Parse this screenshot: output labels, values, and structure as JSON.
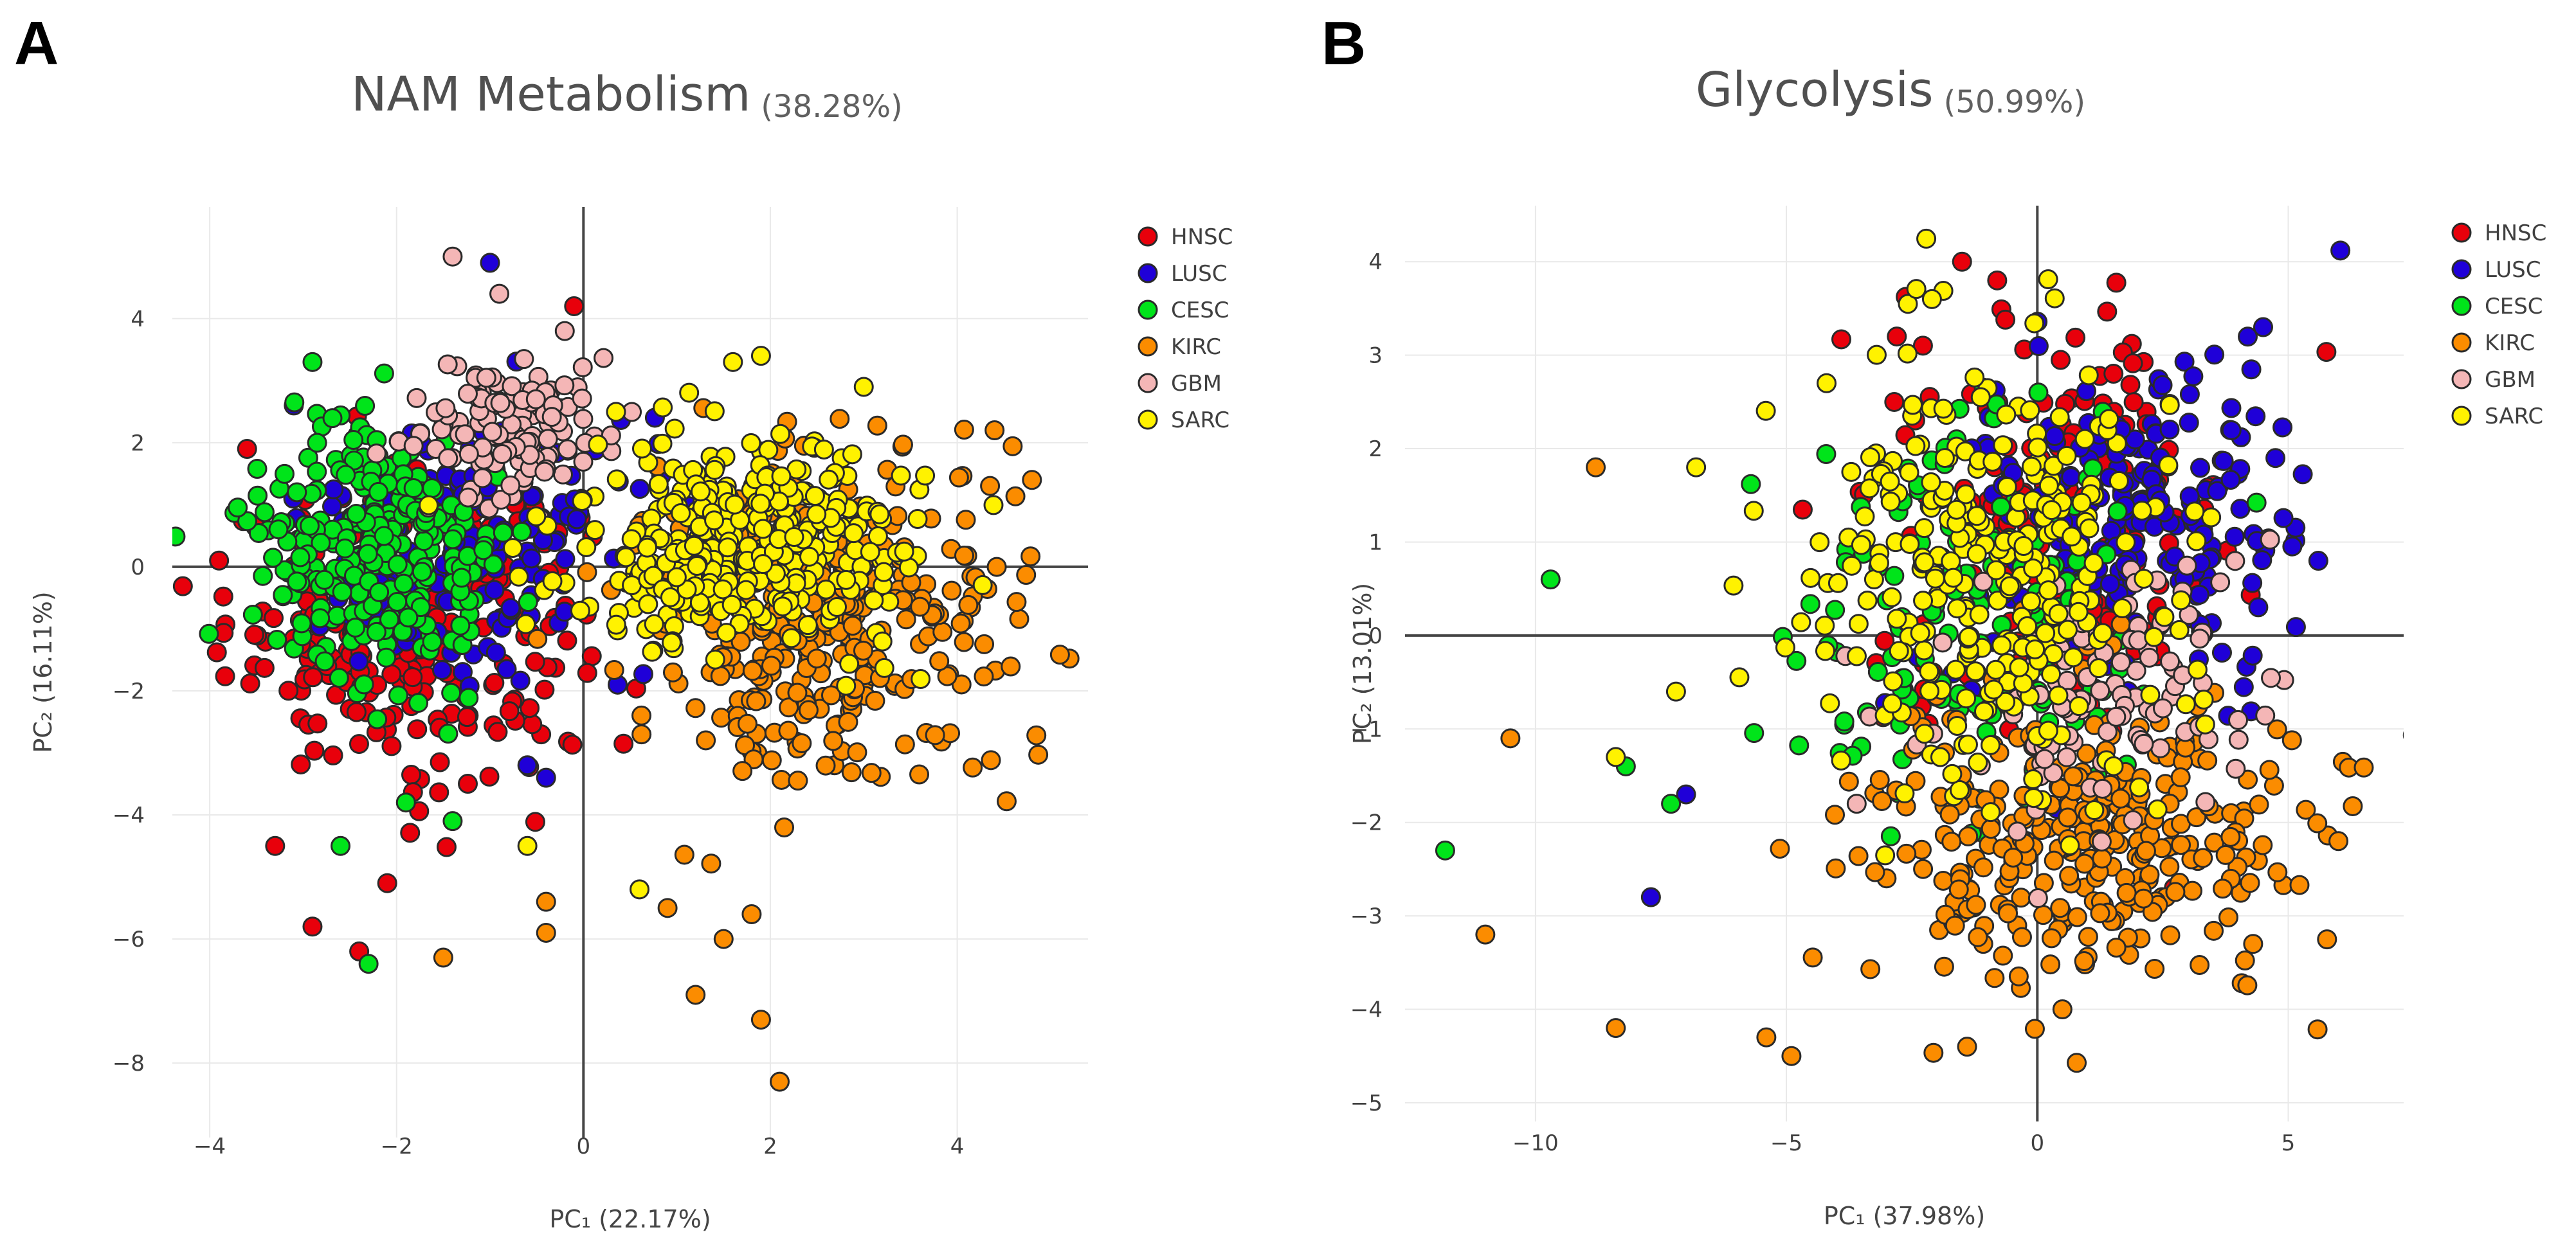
{
  "chart_data": [
    {
      "panel_letter": "A",
      "type": "scatter",
      "title": "NAM Metabolism",
      "subtitle": "(38.28%)",
      "xlabel": "PC₁ (22.17%)",
      "ylabel": "PC₂ (16.11%)",
      "xlim": [
        -4.4,
        5.4
      ],
      "ylim": [
        -9.2,
        5.8
      ],
      "xticks": [
        -4,
        -2,
        0,
        2,
        4
      ],
      "xtick_labels": [
        "−4",
        "−2",
        "0",
        "2",
        "4"
      ],
      "yticks": [
        -8,
        -6,
        -4,
        -2,
        0,
        2,
        4
      ],
      "ytick_labels": [
        "−8",
        "−6",
        "−4",
        "−2",
        "0",
        "2",
        "4"
      ],
      "grid": true,
      "legend_position": "top-right",
      "series": [
        {
          "name": "HNSC",
          "color": "#e8000b",
          "n": 260,
          "center": [
            -1.9,
            -1.0
          ],
          "spread": [
            0.95,
            1.15
          ],
          "extra_points": [
            [
              -2.9,
              -5.8
            ],
            [
              -2.4,
              -6.2
            ],
            [
              -2.1,
              -5.1
            ],
            [
              -3.3,
              -4.5
            ],
            [
              -0.1,
              4.2
            ],
            [
              -3.9,
              0.1
            ],
            [
              -3.6,
              1.9
            ]
          ]
        },
        {
          "name": "LUSC",
          "color": "#1f00d8",
          "n": 200,
          "center": [
            -1.3,
            0.4
          ],
          "spread": [
            0.9,
            1.0
          ],
          "extra_points": [
            [
              -1.0,
              4.9
            ],
            [
              -0.4,
              -3.4
            ],
            [
              -0.6,
              -3.2
            ],
            [
              -3.1,
              2.6
            ]
          ]
        },
        {
          "name": "CESC",
          "color": "#00e41a",
          "n": 260,
          "center": [
            -2.2,
            0.2
          ],
          "spread": [
            0.7,
            1.1
          ],
          "extra_points": [
            [
              -2.3,
              -6.4
            ],
            [
              -2.6,
              -4.5
            ],
            [
              -2.9,
              3.3
            ],
            [
              -1.9,
              -3.8
            ],
            [
              -1.4,
              -4.1
            ]
          ]
        },
        {
          "name": "KIRC",
          "color": "#fb8c00",
          "n": 360,
          "center": [
            2.5,
            -0.9
          ],
          "spread": [
            1.0,
            1.35
          ],
          "extra_points": [
            [
              2.1,
              -8.3
            ],
            [
              1.9,
              -7.3
            ],
            [
              1.2,
              -6.9
            ],
            [
              1.5,
              -6.0
            ],
            [
              1.8,
              -5.6
            ],
            [
              0.9,
              -5.5
            ],
            [
              -0.4,
              -5.4
            ],
            [
              -0.4,
              -5.9
            ],
            [
              -1.5,
              -6.3
            ],
            [
              4.4,
              2.2
            ],
            [
              4.8,
              1.4
            ]
          ]
        },
        {
          "name": "GBM",
          "color": "#f4b6b6",
          "n": 130,
          "center": [
            -0.7,
            2.3
          ],
          "spread": [
            0.55,
            0.6
          ],
          "extra_points": [
            [
              -1.4,
              5.0
            ],
            [
              -0.9,
              4.4
            ],
            [
              -0.2,
              3.8
            ]
          ]
        },
        {
          "name": "SARC",
          "color": "#fff200",
          "n": 360,
          "center": [
            1.7,
            0.3
          ],
          "spread": [
            0.9,
            0.85
          ],
          "extra_points": [
            [
              1.9,
              3.4
            ],
            [
              1.6,
              3.3
            ],
            [
              3.0,
              2.9
            ],
            [
              0.6,
              -5.2
            ],
            [
              -0.6,
              -4.5
            ]
          ]
        }
      ]
    },
    {
      "panel_letter": "B",
      "type": "scatter",
      "title": "Glycolysis",
      "subtitle": "(50.99%)",
      "xlabel": "PC₁ (37.98%)",
      "ylabel": "PC₂ (13.01%)",
      "xlim": [
        -12.6,
        7.3
      ],
      "ylim": [
        -5.2,
        4.6
      ],
      "xticks": [
        -10,
        -5,
        0,
        5
      ],
      "xtick_labels": [
        "−10",
        "−5",
        "0",
        "5"
      ],
      "yticks": [
        -5,
        -4,
        -3,
        -2,
        -1,
        0,
        1,
        2,
        3,
        4
      ],
      "ytick_labels": [
        "−5",
        "−4",
        "−3",
        "−2",
        "−1",
        "0",
        "1",
        "2",
        "3",
        "4"
      ],
      "grid": true,
      "legend_position": "top-right",
      "series": [
        {
          "name": "HNSC",
          "color": "#e8000b",
          "n": 200,
          "center": [
            0.6,
            1.2
          ],
          "spread": [
            1.7,
            1.1
          ],
          "extra_points": [
            [
              -1.5,
              4.0
            ],
            [
              -0.8,
              3.8
            ],
            [
              -2.8,
              3.2
            ]
          ]
        },
        {
          "name": "LUSC",
          "color": "#1f00d8",
          "n": 230,
          "center": [
            1.8,
            1.2
          ],
          "spread": [
            1.6,
            0.9
          ],
          "extra_points": [
            [
              5.6,
              0.8
            ],
            [
              4.5,
              3.3
            ],
            [
              -7.0,
              -1.7
            ],
            [
              -7.7,
              -2.8
            ]
          ]
        },
        {
          "name": "CESC",
          "color": "#00e41a",
          "n": 150,
          "center": [
            -1.1,
            0.1
          ],
          "spread": [
            1.9,
            1.1
          ],
          "extra_points": [
            [
              -11.8,
              -2.3
            ],
            [
              -9.7,
              0.6
            ],
            [
              -8.2,
              -1.4
            ],
            [
              -7.3,
              -1.8
            ]
          ]
        },
        {
          "name": "KIRC",
          "color": "#fb8c00",
          "n": 330,
          "center": [
            1.0,
            -2.1
          ],
          "spread": [
            2.3,
            0.75
          ],
          "extra_points": [
            [
              -11.0,
              -3.2
            ],
            [
              -8.4,
              -4.2
            ],
            [
              -8.8,
              1.8
            ],
            [
              -10.5,
              -1.1
            ],
            [
              -4.9,
              -4.5
            ],
            [
              -5.4,
              -4.3
            ],
            [
              0.5,
              -4.0
            ],
            [
              -1.4,
              -4.4
            ],
            [
              6.0,
              -2.2
            ],
            [
              4.3,
              -3.3
            ]
          ]
        },
        {
          "name": "GBM",
          "color": "#f4b6b6",
          "n": 110,
          "center": [
            1.3,
            -0.5
          ],
          "spread": [
            1.6,
            0.75
          ],
          "extra_points": [
            [
              -3.6,
              -1.8
            ]
          ]
        },
        {
          "name": "SARC",
          "color": "#fff200",
          "n": 300,
          "center": [
            -1.0,
            0.7
          ],
          "spread": [
            2.0,
            1.15
          ],
          "extra_points": [
            [
              -2.1,
              3.6
            ],
            [
              -4.2,
              2.7
            ],
            [
              -6.8,
              1.8
            ],
            [
              -8.4,
              -1.3
            ],
            [
              -7.2,
              -0.6
            ]
          ]
        }
      ]
    }
  ]
}
